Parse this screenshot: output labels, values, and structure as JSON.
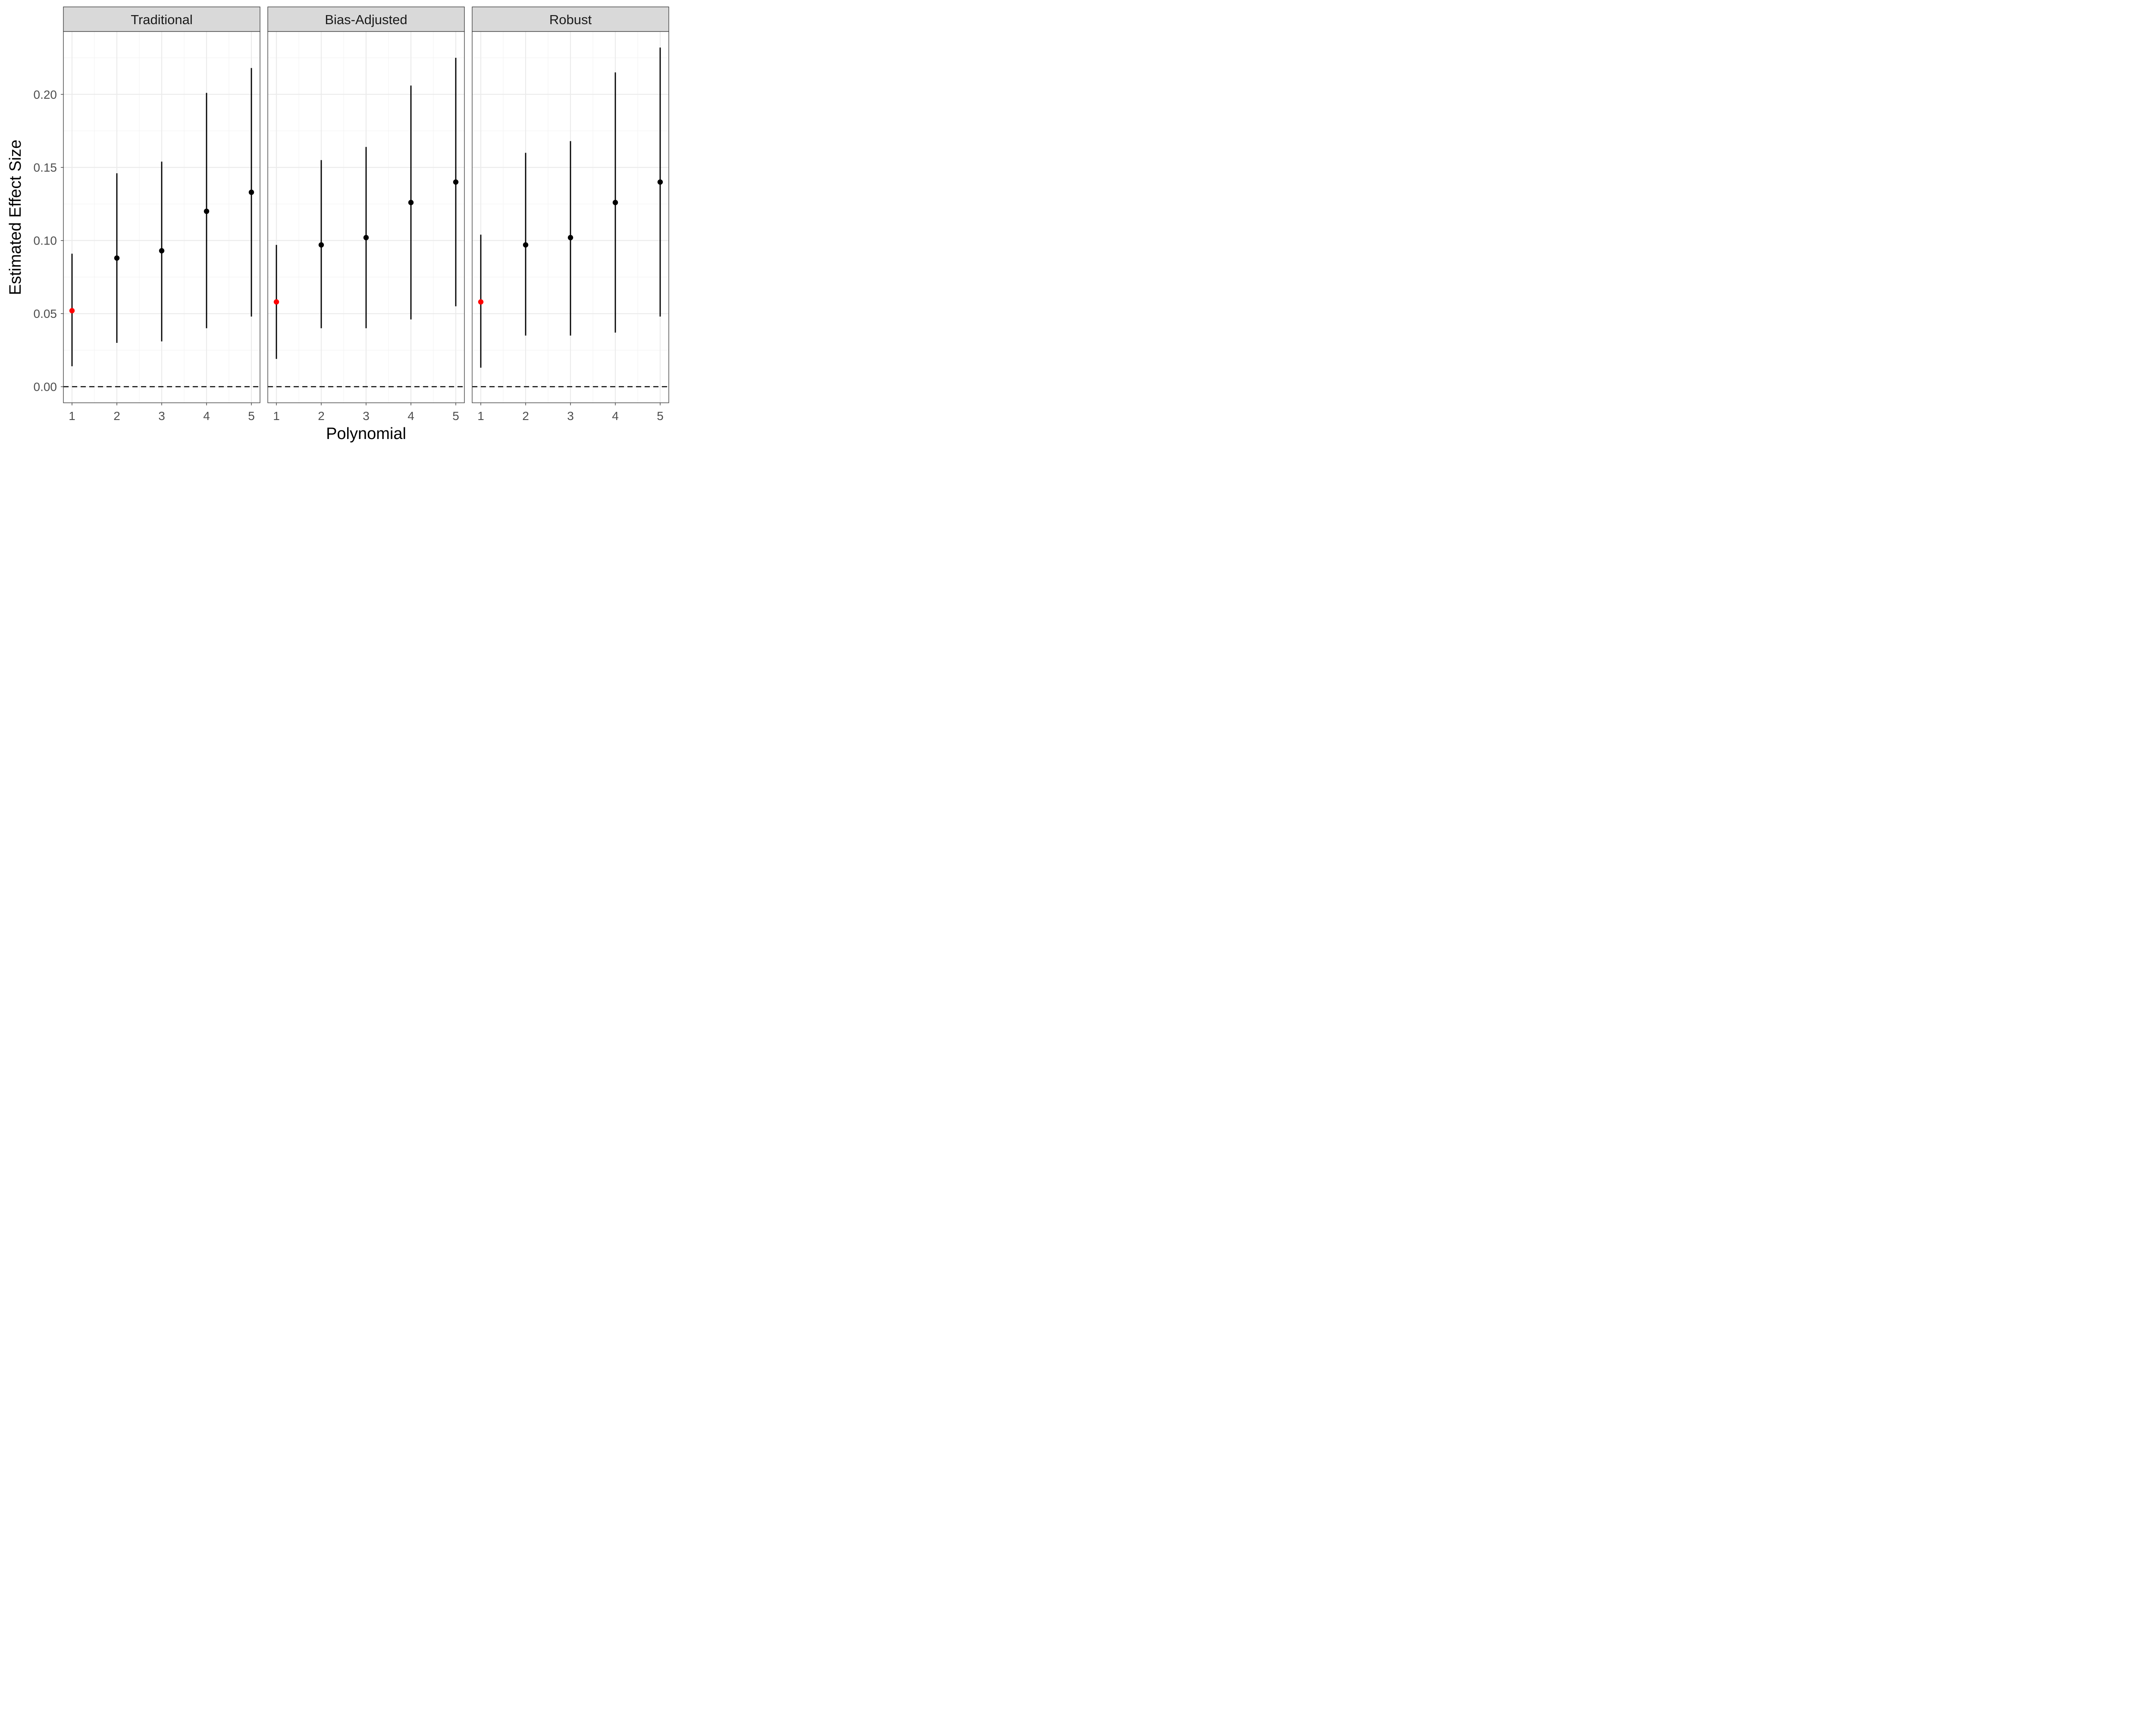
{
  "chart_data": {
    "type": "pointrange",
    "xlabel": "Polynomial",
    "ylabel": "Estimated Effect Size",
    "x_ticks": [
      "1",
      "2",
      "3",
      "4",
      "5"
    ],
    "y_ticks": [
      "0.00",
      "0.05",
      "0.10",
      "0.15",
      "0.20"
    ],
    "ylim": [
      -0.011,
      0.243
    ],
    "reference_line": {
      "y": 0,
      "style": "dashed"
    },
    "colors": {
      "highlight": "#ff0000",
      "default": "#000000"
    },
    "grid": true,
    "panels": [
      {
        "title": "Traditional",
        "points": [
          {
            "x": 1,
            "y": 0.052,
            "lo": 0.014,
            "hi": 0.091,
            "highlight": true
          },
          {
            "x": 2,
            "y": 0.088,
            "lo": 0.03,
            "hi": 0.146,
            "highlight": false
          },
          {
            "x": 3,
            "y": 0.093,
            "lo": 0.031,
            "hi": 0.154,
            "highlight": false
          },
          {
            "x": 4,
            "y": 0.12,
            "lo": 0.04,
            "hi": 0.201,
            "highlight": false
          },
          {
            "x": 5,
            "y": 0.133,
            "lo": 0.048,
            "hi": 0.218,
            "highlight": false
          }
        ]
      },
      {
        "title": "Bias-Adjusted",
        "points": [
          {
            "x": 1,
            "y": 0.058,
            "lo": 0.019,
            "hi": 0.097,
            "highlight": true
          },
          {
            "x": 2,
            "y": 0.097,
            "lo": 0.04,
            "hi": 0.155,
            "highlight": false
          },
          {
            "x": 3,
            "y": 0.102,
            "lo": 0.04,
            "hi": 0.164,
            "highlight": false
          },
          {
            "x": 4,
            "y": 0.126,
            "lo": 0.046,
            "hi": 0.206,
            "highlight": false
          },
          {
            "x": 5,
            "y": 0.14,
            "lo": 0.055,
            "hi": 0.225,
            "highlight": false
          }
        ]
      },
      {
        "title": "Robust",
        "points": [
          {
            "x": 1,
            "y": 0.058,
            "lo": 0.013,
            "hi": 0.104,
            "highlight": true
          },
          {
            "x": 2,
            "y": 0.097,
            "lo": 0.035,
            "hi": 0.16,
            "highlight": false
          },
          {
            "x": 3,
            "y": 0.102,
            "lo": 0.035,
            "hi": 0.168,
            "highlight": false
          },
          {
            "x": 4,
            "y": 0.126,
            "lo": 0.037,
            "hi": 0.215,
            "highlight": false
          },
          {
            "x": 5,
            "y": 0.14,
            "lo": 0.048,
            "hi": 0.232,
            "highlight": false
          }
        ]
      }
    ]
  }
}
